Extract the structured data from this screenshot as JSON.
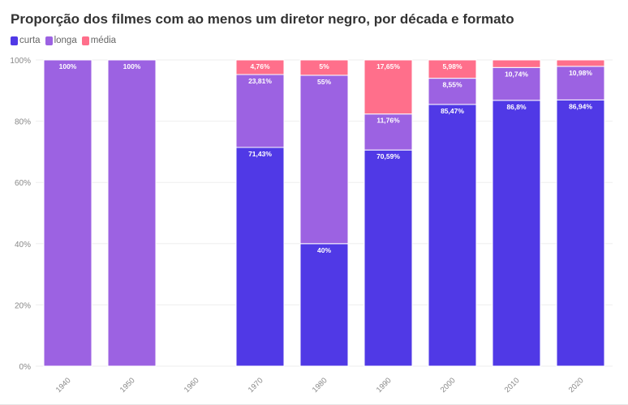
{
  "chart_data": {
    "type": "bar",
    "stacked": true,
    "title": "Proporção dos filmes com ao menos um diretor negro, por década e formato",
    "categories": [
      "1940",
      "1950",
      "1960",
      "1970",
      "1980",
      "1990",
      "2000",
      "2010",
      "2020"
    ],
    "series": [
      {
        "name": "curta",
        "color": "#5039e6",
        "values": [
          0,
          0,
          0,
          71.43,
          40,
          70.59,
          85.47,
          86.8,
          86.94
        ],
        "labels": [
          "",
          "",
          "",
          "71,43%",
          "40%",
          "70,59%",
          "85,47%",
          "86,8%",
          "86,94%"
        ]
      },
      {
        "name": "longa",
        "color": "#9c62e2",
        "values": [
          100,
          100,
          0,
          23.81,
          55,
          11.76,
          8.55,
          10.74,
          10.98
        ],
        "labels": [
          "100%",
          "100%",
          "",
          "23,81%",
          "55%",
          "11,76%",
          "8,55%",
          "10,74%",
          "10,98%"
        ]
      },
      {
        "name": "média",
        "color": "#ff6f8b",
        "values": [
          0,
          0,
          0,
          4.76,
          5,
          17.65,
          5.98,
          2.46,
          2.08
        ],
        "labels": [
          "",
          "",
          "",
          "4,76%",
          "5%",
          "17,65%",
          "5,98%",
          "",
          ""
        ]
      }
    ],
    "ylim": [
      0,
      100
    ],
    "yticks": [
      "0%",
      "20%",
      "40%",
      "60%",
      "80%",
      "100%"
    ],
    "grid": true,
    "legend": "top-left"
  }
}
